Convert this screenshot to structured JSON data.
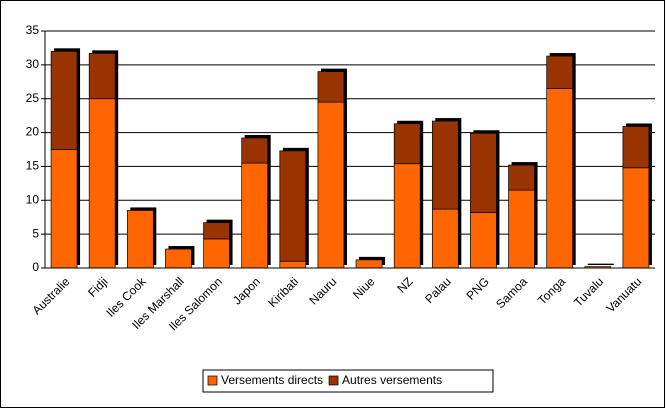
{
  "chart_data": {
    "type": "stacked-bar",
    "categories": [
      "Australie",
      "Fidji",
      "Iles Cook",
      "Iles Marshall",
      "Iles Salomon",
      "Japon",
      "Kiribati",
      "Nauru",
      "Niue",
      "NZ",
      "Palau",
      "PNG",
      "Samoa",
      "Tonga",
      "Tuvalu",
      "Vanuatu"
    ],
    "series": [
      {
        "name": "Versements directs",
        "color": "#ff6600",
        "values": [
          17.5,
          25,
          8.5,
          2.8,
          4.3,
          15.5,
          1,
          24.5,
          1.2,
          15.4,
          8.7,
          8.2,
          11.5,
          26.5,
          0.2,
          14.8
        ]
      },
      {
        "name": "Autres versements",
        "color": "#993300",
        "values": [
          14.5,
          6.7,
          0,
          0,
          2.4,
          3.7,
          16.3,
          4.5,
          0,
          5.9,
          13,
          11.7,
          3.7,
          4.8,
          0,
          6.1
        ]
      }
    ],
    "ylim": [
      0,
      35
    ],
    "yticks": [
      0,
      5,
      10,
      15,
      20,
      25,
      30,
      35
    ],
    "grid": true
  }
}
